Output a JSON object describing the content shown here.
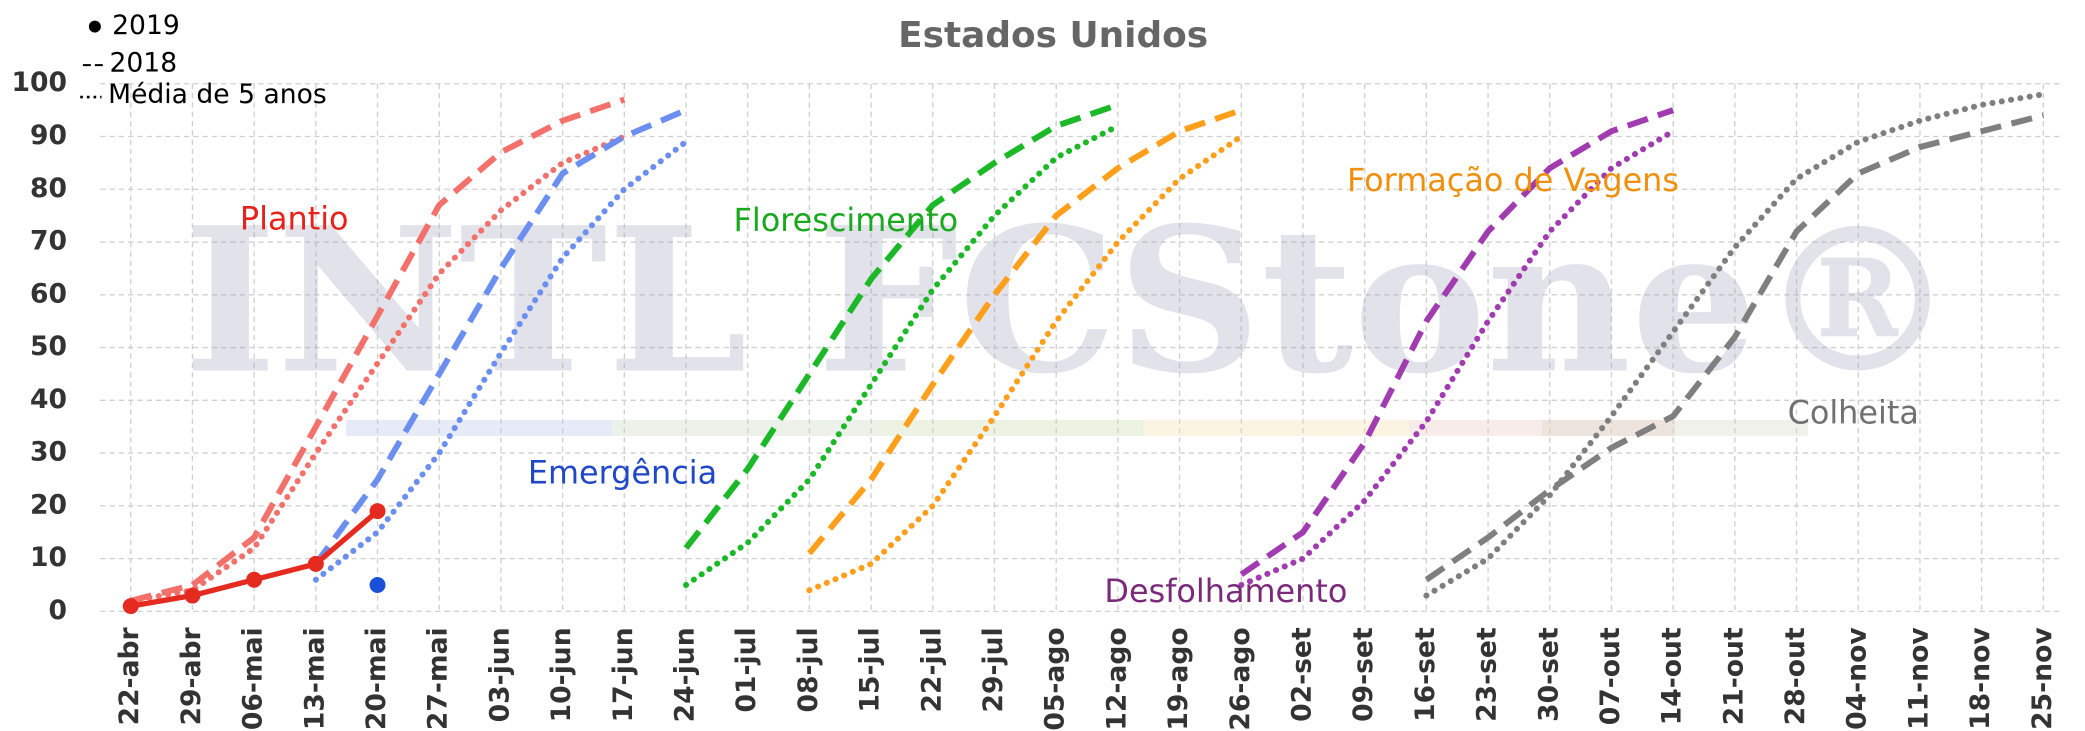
{
  "chart_data": {
    "type": "line",
    "title": "Estados Unidos",
    "watermark": "INTL FCStone®",
    "categories": [
      "22-abr",
      "29-abr",
      "06-mai",
      "13-mai",
      "20-mai",
      "27-mai",
      "03-jun",
      "10-jun",
      "17-jun",
      "24-jun",
      "01-jul",
      "08-jul",
      "15-jul",
      "22-jul",
      "29-jul",
      "05-ago",
      "12-ago",
      "19-ago",
      "26-ago",
      "02-set",
      "09-set",
      "16-set",
      "23-set",
      "30-set",
      "07-out",
      "14-out",
      "21-out",
      "28-out",
      "04-nov",
      "11-nov",
      "18-nov",
      "25-nov"
    ],
    "ylim": [
      0,
      100
    ],
    "yticks": [
      0,
      10,
      20,
      30,
      40,
      50,
      60,
      70,
      80,
      90,
      100
    ],
    "grid": true,
    "legend": [
      {
        "label": "2019",
        "style": "solid"
      },
      {
        "label": "2018",
        "style": "dashed"
      },
      {
        "label": "Média de 5 anos",
        "style": "dotted"
      }
    ],
    "annotations": [
      {
        "text": "Plantio",
        "color": "#e8211b"
      },
      {
        "text": "Emergência",
        "color": "#1f47c8"
      },
      {
        "text": "Florescimento",
        "color": "#1aa81f"
      },
      {
        "text": "Formação de Vagens",
        "color": "#f0900c"
      },
      {
        "text": "Desfolhamento",
        "color": "#7b2a7a"
      },
      {
        "text": "Colheita",
        "color": "#707070"
      }
    ],
    "series": [
      {
        "color": "#f4706a",
        "style": "dashed",
        "values": [
          2,
          5,
          14,
          35,
          56,
          77,
          87,
          93,
          97,
          null,
          null,
          null,
          null,
          null,
          null,
          null,
          null,
          null,
          null,
          null,
          null,
          null,
          null,
          null,
          null,
          null,
          null,
          null,
          null,
          null,
          null,
          null
        ]
      },
      {
        "color": "#f4706a",
        "style": "dotted",
        "values": [
          2,
          4,
          12,
          30,
          47,
          64,
          76,
          85,
          90,
          null,
          null,
          null,
          null,
          null,
          null,
          null,
          null,
          null,
          null,
          null,
          null,
          null,
          null,
          null,
          null,
          null,
          null,
          null,
          null,
          null,
          null,
          null
        ]
      },
      {
        "color": "#6b8ff0",
        "style": "dashed",
        "values": [
          null,
          null,
          null,
          9,
          25,
          45,
          65,
          83,
          90,
          95,
          null,
          null,
          null,
          null,
          null,
          null,
          null,
          null,
          null,
          null,
          null,
          null,
          null,
          null,
          null,
          null,
          null,
          null,
          null,
          null,
          null,
          null
        ]
      },
      {
        "color": "#6b8ff0",
        "style": "dotted",
        "values": [
          null,
          null,
          null,
          6,
          15,
          30,
          49,
          67,
          80,
          89,
          null,
          null,
          null,
          null,
          null,
          null,
          null,
          null,
          null,
          null,
          null,
          null,
          null,
          null,
          null,
          null,
          null,
          null,
          null,
          null,
          null,
          null
        ]
      },
      {
        "color": "#1bb827",
        "style": "dashed",
        "values": [
          null,
          null,
          null,
          null,
          null,
          null,
          null,
          null,
          null,
          12,
          27,
          45,
          63,
          77,
          85,
          92,
          96,
          null,
          null,
          null,
          null,
          null,
          null,
          null,
          null,
          null,
          null,
          null,
          null,
          null,
          null,
          null
        ]
      },
      {
        "color": "#1bb827",
        "style": "dotted",
        "values": [
          null,
          null,
          null,
          null,
          null,
          null,
          null,
          null,
          null,
          5,
          13,
          25,
          43,
          61,
          75,
          86,
          92,
          null,
          null,
          null,
          null,
          null,
          null,
          null,
          null,
          null,
          null,
          null,
          null,
          null,
          null,
          null
        ]
      },
      {
        "color": "#ff9f1c",
        "style": "dashed",
        "values": [
          null,
          null,
          null,
          null,
          null,
          null,
          null,
          null,
          null,
          null,
          null,
          11,
          25,
          43,
          60,
          75,
          84,
          91,
          95,
          null,
          null,
          null,
          null,
          null,
          null,
          null,
          null,
          null,
          null,
          null,
          null,
          null
        ]
      },
      {
        "color": "#ff9f1c",
        "style": "dotted",
        "values": [
          null,
          null,
          null,
          null,
          null,
          null,
          null,
          null,
          null,
          null,
          null,
          4,
          9,
          20,
          37,
          55,
          70,
          82,
          90,
          null,
          null,
          null,
          null,
          null,
          null,
          null,
          null,
          null,
          null,
          null,
          null,
          null
        ]
      },
      {
        "color": "#a03cb0",
        "style": "dashed",
        "values": [
          null,
          null,
          null,
          null,
          null,
          null,
          null,
          null,
          null,
          null,
          null,
          null,
          null,
          null,
          null,
          null,
          null,
          null,
          7,
          15,
          32,
          55,
          72,
          84,
          91,
          95,
          null,
          null,
          null,
          null,
          null,
          null
        ]
      },
      {
        "color": "#a03cb0",
        "style": "dotted",
        "values": [
          null,
          null,
          null,
          null,
          null,
          null,
          null,
          null,
          null,
          null,
          null,
          null,
          null,
          null,
          null,
          null,
          null,
          null,
          5,
          10,
          21,
          36,
          55,
          72,
          84,
          91,
          null,
          null,
          null,
          null,
          null,
          null
        ]
      },
      {
        "color": "#7f7f7f",
        "style": "dashed",
        "values": [
          null,
          null,
          null,
          null,
          null,
          null,
          null,
          null,
          null,
          null,
          null,
          null,
          null,
          null,
          null,
          null,
          null,
          null,
          null,
          null,
          null,
          6,
          14,
          23,
          31,
          37,
          52,
          72,
          83,
          88,
          91,
          94
        ]
      },
      {
        "color": "#7f7f7f",
        "style": "dotted",
        "values": [
          null,
          null,
          null,
          null,
          null,
          null,
          null,
          null,
          null,
          null,
          null,
          null,
          null,
          null,
          null,
          null,
          null,
          null,
          null,
          null,
          null,
          3,
          10,
          22,
          37,
          53,
          69,
          82,
          89,
          93,
          96,
          98
        ]
      },
      {
        "color": "#e52b20",
        "style": "solid",
        "markers": true,
        "values": [
          1,
          3,
          6,
          9,
          19,
          null,
          null,
          null,
          null,
          null,
          null,
          null,
          null,
          null,
          null,
          null,
          null,
          null,
          null,
          null,
          null,
          null,
          null,
          null,
          null,
          null,
          null,
          null,
          null,
          null,
          null,
          null
        ]
      },
      {
        "color": "#1a4fd8",
        "style": "solid",
        "markers": true,
        "values": [
          null,
          null,
          null,
          null,
          5,
          null,
          null,
          null,
          null,
          null,
          null,
          null,
          null,
          null,
          null,
          null,
          null,
          null,
          null,
          null,
          null,
          null,
          null,
          null,
          null,
          null,
          null,
          null,
          null,
          null,
          null,
          null
        ]
      }
    ]
  }
}
